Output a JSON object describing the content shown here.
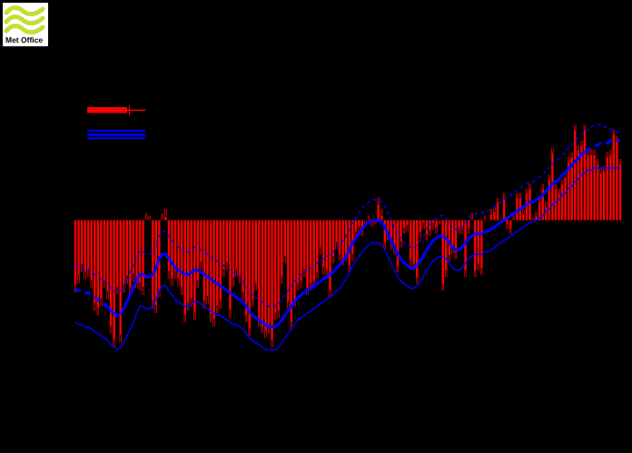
{
  "page": {
    "background": "#000000",
    "note": "chart rendered on black; axis text/title/legend labels are black-on-black and not visible"
  },
  "logo": {
    "brand": "Met Office",
    "bg": "#ffffff",
    "wave_color": "#c3df37",
    "text_color": "#000000"
  },
  "legend": {
    "annual_swatch_color": "#ff0000",
    "smoothed_swatch_color": "#0000ff",
    "annual_label": "",
    "smoothed_label": ""
  },
  "chart_data": {
    "type": "bar",
    "title": "",
    "xlabel": "",
    "ylabel": "",
    "start_year": 1850,
    "end_year": 2019,
    "grid": false,
    "legend_position": "upper-left",
    "bar_color": "#ff0000",
    "whisker_color": "#000000",
    "line_color": "#0000ff",
    "ylim": [
      -0.72,
      0.72
    ],
    "series": [
      {
        "name": "annual-anomaly-bars",
        "values": [
          -0.32,
          -0.28,
          -0.23,
          -0.26,
          -0.25,
          -0.3,
          -0.4,
          -0.42,
          -0.38,
          -0.3,
          -0.35,
          -0.5,
          -0.56,
          -0.33,
          -0.54,
          -0.32,
          -0.28,
          -0.33,
          -0.27,
          -0.3,
          -0.31,
          -0.33,
          0.03,
          0.02,
          -0.39,
          -0.41,
          -0.34,
          0.03,
          0.05,
          -0.26,
          -0.29,
          -0.26,
          -0.29,
          -0.33,
          -0.45,
          -0.4,
          -0.38,
          -0.44,
          -0.3,
          -0.22,
          -0.39,
          -0.37,
          -0.45,
          -0.47,
          -0.41,
          -0.39,
          -0.25,
          -0.22,
          -0.43,
          -0.29,
          -0.25,
          -0.28,
          -0.35,
          -0.45,
          -0.51,
          -0.38,
          -0.31,
          -0.47,
          -0.5,
          -0.52,
          -0.5,
          -0.56,
          -0.44,
          -0.43,
          -0.28,
          -0.19,
          -0.39,
          -0.48,
          -0.38,
          -0.31,
          -0.3,
          -0.25,
          -0.33,
          -0.31,
          -0.3,
          -0.26,
          -0.15,
          -0.24,
          -0.25,
          -0.34,
          -0.19,
          -0.13,
          -0.18,
          -0.2,
          -0.18,
          -0.23,
          -0.18,
          -0.08,
          -0.06,
          -0.07,
          -0.02,
          0.02,
          -0.03,
          -0.02,
          0.1,
          0.05,
          -0.13,
          -0.09,
          -0.13,
          -0.15,
          -0.23,
          -0.12,
          -0.06,
          -0.05,
          -0.2,
          -0.22,
          -0.28,
          -0.08,
          -0.04,
          -0.09,
          -0.07,
          -0.04,
          -0.06,
          -0.02,
          -0.31,
          -0.25,
          -0.18,
          -0.15,
          -0.17,
          -0.06,
          -0.06,
          -0.25,
          -0.06,
          0.03,
          -0.25,
          -0.22,
          -0.24,
          0.02,
          0.0,
          0.05,
          0.06,
          0.1,
          -0.01,
          0.12,
          -0.04,
          -0.06,
          0.02,
          0.12,
          0.12,
          0.05,
          0.14,
          0.16,
          0.01,
          0.04,
          0.1,
          0.16,
          0.08,
          0.2,
          0.32,
          0.16,
          0.14,
          0.18,
          0.21,
          0.28,
          0.3,
          0.42,
          0.33,
          0.35,
          0.42,
          0.31,
          0.31,
          0.31,
          0.27,
          0.23,
          0.24,
          0.3,
          0.31,
          0.4,
          0.37,
          0.27
        ]
      },
      {
        "name": "smoothed-line",
        "values": [
          -0.3,
          -0.31,
          -0.31,
          -0.32,
          -0.32,
          -0.33,
          -0.34,
          -0.35,
          -0.36,
          -0.37,
          -0.38,
          -0.4,
          -0.41,
          -0.42,
          -0.41,
          -0.39,
          -0.36,
          -0.33,
          -0.3,
          -0.26,
          -0.24,
          -0.24,
          -0.25,
          -0.25,
          -0.24,
          -0.21,
          -0.17,
          -0.15,
          -0.15,
          -0.17,
          -0.19,
          -0.21,
          -0.22,
          -0.23,
          -0.24,
          -0.24,
          -0.23,
          -0.22,
          -0.22,
          -0.23,
          -0.24,
          -0.25,
          -0.26,
          -0.27,
          -0.28,
          -0.29,
          -0.3,
          -0.31,
          -0.32,
          -0.33,
          -0.34,
          -0.35,
          -0.36,
          -0.38,
          -0.4,
          -0.42,
          -0.43,
          -0.44,
          -0.45,
          -0.46,
          -0.47,
          -0.47,
          -0.47,
          -0.46,
          -0.44,
          -0.42,
          -0.4,
          -0.38,
          -0.36,
          -0.34,
          -0.33,
          -0.32,
          -0.31,
          -0.3,
          -0.29,
          -0.28,
          -0.27,
          -0.26,
          -0.25,
          -0.24,
          -0.23,
          -0.21,
          -0.2,
          -0.18,
          -0.16,
          -0.13,
          -0.1,
          -0.08,
          -0.06,
          -0.04,
          -0.02,
          -0.01,
          0.0,
          0.0,
          0.0,
          -0.01,
          -0.03,
          -0.06,
          -0.09,
          -0.12,
          -0.15,
          -0.17,
          -0.19,
          -0.2,
          -0.21,
          -0.21,
          -0.2,
          -0.18,
          -0.16,
          -0.13,
          -0.11,
          -0.09,
          -0.08,
          -0.07,
          -0.07,
          -0.08,
          -0.1,
          -0.12,
          -0.13,
          -0.13,
          -0.12,
          -0.1,
          -0.08,
          -0.07,
          -0.06,
          -0.06,
          -0.06,
          -0.05,
          -0.05,
          -0.04,
          -0.03,
          -0.02,
          -0.01,
          0.0,
          0.01,
          0.02,
          0.03,
          0.04,
          0.05,
          0.06,
          0.07,
          0.08,
          0.08,
          0.09,
          0.1,
          0.11,
          0.13,
          0.14,
          0.16,
          0.17,
          0.18,
          0.2,
          0.21,
          0.23,
          0.24,
          0.26,
          0.27,
          0.29,
          0.3,
          0.31,
          0.32,
          0.33,
          0.33,
          0.34,
          0.34,
          0.34,
          0.35,
          0.35,
          0.35,
          0.35
        ]
      },
      {
        "name": "smoothed-upper-95ci",
        "values": [
          -0.2,
          -0.21,
          -0.21,
          -0.22,
          -0.22,
          -0.23,
          -0.24,
          -0.25,
          -0.26,
          -0.27,
          -0.28,
          -0.3,
          -0.31,
          -0.32,
          -0.31,
          -0.29,
          -0.26,
          -0.23,
          -0.2,
          -0.16,
          -0.14,
          -0.14,
          -0.15,
          -0.15,
          -0.14,
          -0.11,
          -0.07,
          -0.05,
          -0.05,
          -0.07,
          -0.09,
          -0.11,
          -0.12,
          -0.13,
          -0.14,
          -0.14,
          -0.13,
          -0.12,
          -0.12,
          -0.13,
          -0.14,
          -0.15,
          -0.16,
          -0.17,
          -0.18,
          -0.19,
          -0.2,
          -0.21,
          -0.22,
          -0.23,
          -0.24,
          -0.25,
          -0.27,
          -0.29,
          -0.31,
          -0.33,
          -0.34,
          -0.35,
          -0.36,
          -0.37,
          -0.38,
          -0.38,
          -0.38,
          -0.37,
          -0.35,
          -0.33,
          -0.31,
          -0.29,
          -0.27,
          -0.25,
          -0.24,
          -0.23,
          -0.22,
          -0.21,
          -0.2,
          -0.19,
          -0.18,
          -0.17,
          -0.16,
          -0.15,
          -0.14,
          -0.12,
          -0.11,
          -0.09,
          -0.07,
          -0.04,
          -0.01,
          0.01,
          0.03,
          0.05,
          0.07,
          0.08,
          0.09,
          0.09,
          0.09,
          0.08,
          0.06,
          0.03,
          0.0,
          -0.03,
          -0.06,
          -0.08,
          -0.1,
          -0.11,
          -0.12,
          -0.12,
          -0.11,
          -0.09,
          -0.07,
          -0.04,
          -0.02,
          0.0,
          0.01,
          0.02,
          0.02,
          0.01,
          -0.01,
          -0.03,
          -0.04,
          -0.04,
          -0.03,
          -0.01,
          0.01,
          0.02,
          0.03,
          0.03,
          0.03,
          0.04,
          0.04,
          0.05,
          0.06,
          0.07,
          0.08,
          0.09,
          0.1,
          0.11,
          0.12,
          0.13,
          0.14,
          0.15,
          0.16,
          0.17,
          0.17,
          0.18,
          0.19,
          0.2,
          0.22,
          0.23,
          0.25,
          0.26,
          0.27,
          0.29,
          0.3,
          0.32,
          0.33,
          0.35,
          0.36,
          0.38,
          0.39,
          0.4,
          0.41,
          0.42,
          0.42,
          0.42,
          0.41,
          0.41,
          0.4,
          0.4,
          0.39,
          0.39
        ]
      },
      {
        "name": "smoothed-lower-95ci",
        "values": [
          -0.45,
          -0.46,
          -0.46,
          -0.47,
          -0.47,
          -0.48,
          -0.49,
          -0.5,
          -0.51,
          -0.52,
          -0.53,
          -0.55,
          -0.56,
          -0.57,
          -0.56,
          -0.54,
          -0.51,
          -0.48,
          -0.45,
          -0.41,
          -0.38,
          -0.38,
          -0.39,
          -0.39,
          -0.38,
          -0.35,
          -0.31,
          -0.29,
          -0.29,
          -0.31,
          -0.33,
          -0.35,
          -0.36,
          -0.37,
          -0.38,
          -0.38,
          -0.37,
          -0.36,
          -0.36,
          -0.37,
          -0.38,
          -0.39,
          -0.4,
          -0.41,
          -0.42,
          -0.42,
          -0.43,
          -0.44,
          -0.45,
          -0.46,
          -0.46,
          -0.47,
          -0.48,
          -0.5,
          -0.52,
          -0.53,
          -0.54,
          -0.55,
          -0.56,
          -0.57,
          -0.57,
          -0.57,
          -0.57,
          -0.56,
          -0.54,
          -0.52,
          -0.5,
          -0.48,
          -0.46,
          -0.44,
          -0.43,
          -0.42,
          -0.41,
          -0.4,
          -0.39,
          -0.38,
          -0.37,
          -0.36,
          -0.35,
          -0.34,
          -0.33,
          -0.31,
          -0.3,
          -0.28,
          -0.26,
          -0.23,
          -0.2,
          -0.18,
          -0.16,
          -0.14,
          -0.12,
          -0.11,
          -0.1,
          -0.1,
          -0.1,
          -0.11,
          -0.13,
          -0.16,
          -0.19,
          -0.22,
          -0.25,
          -0.27,
          -0.28,
          -0.29,
          -0.3,
          -0.3,
          -0.29,
          -0.27,
          -0.25,
          -0.22,
          -0.2,
          -0.18,
          -0.17,
          -0.16,
          -0.16,
          -0.17,
          -0.19,
          -0.21,
          -0.22,
          -0.22,
          -0.21,
          -0.19,
          -0.17,
          -0.16,
          -0.15,
          -0.15,
          -0.15,
          -0.14,
          -0.14,
          -0.13,
          -0.12,
          -0.11,
          -0.1,
          -0.09,
          -0.08,
          -0.07,
          -0.06,
          -0.05,
          -0.04,
          -0.03,
          -0.02,
          -0.01,
          -0.01,
          0.0,
          0.01,
          0.02,
          0.04,
          0.05,
          0.07,
          0.08,
          0.09,
          0.11,
          0.12,
          0.14,
          0.15,
          0.17,
          0.18,
          0.2,
          0.21,
          0.22,
          0.22,
          0.23,
          0.23,
          0.23,
          0.23,
          0.23,
          0.23,
          0.23,
          0.23,
          0.23
        ]
      }
    ]
  }
}
